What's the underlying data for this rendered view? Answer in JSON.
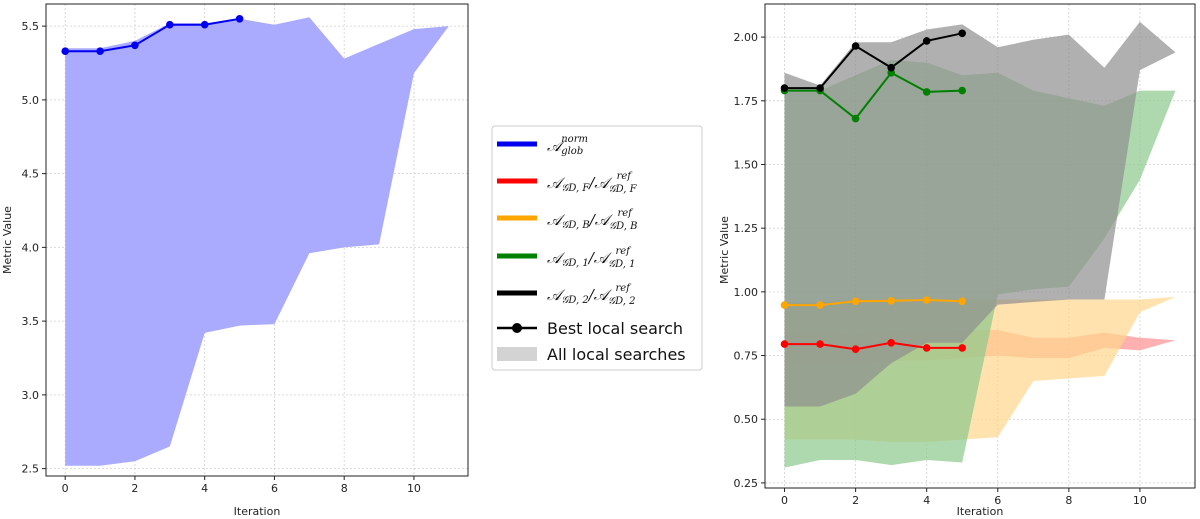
{
  "chart_data": [
    {
      "type": "area",
      "xlabel": "Iteration",
      "ylabel": "Metric Value",
      "xlim": [
        -0.55,
        11.55
      ],
      "ylim": [
        2.45,
        5.65
      ],
      "xticks": [
        0,
        2,
        4,
        6,
        8,
        10
      ],
      "yticks": [
        2.5,
        3.0,
        3.5,
        4.0,
        4.5,
        5.0,
        5.5
      ],
      "ytick_labels": [
        "2.5",
        "3.0",
        "3.5",
        "4.0",
        "4.5",
        "5.0",
        "5.5"
      ],
      "grid": true,
      "series": [
        {
          "color": "#0000ee",
          "band_color": "#aaaaff",
          "band_x": [
            0,
            1,
            2,
            3,
            4,
            5,
            6,
            7,
            8,
            9,
            10,
            11
          ],
          "band_upper": [
            5.35,
            5.35,
            5.4,
            5.52,
            5.52,
            5.55,
            5.51,
            5.56,
            5.28,
            5.38,
            5.48,
            5.5
          ],
          "band_lower": [
            2.52,
            2.52,
            2.55,
            2.65,
            3.42,
            3.47,
            3.48,
            3.96,
            4.0,
            4.02,
            5.18,
            5.5
          ],
          "best_x": [
            0,
            1,
            2,
            3,
            4,
            5
          ],
          "best_y": [
            5.33,
            5.33,
            5.37,
            5.51,
            5.51,
            5.55
          ]
        }
      ]
    },
    {
      "type": "area",
      "xlabel": "Iteration",
      "ylabel": "Metric Value",
      "xlim": [
        -0.55,
        11.55
      ],
      "ylim": [
        0.23,
        2.13
      ],
      "xticks": [
        0,
        2,
        4,
        6,
        8,
        10
      ],
      "yticks": [
        0.25,
        0.5,
        0.75,
        1.0,
        1.25,
        1.5,
        1.75,
        2.0
      ],
      "ytick_labels": [
        "0.25",
        "0.50",
        "0.75",
        "1.00",
        "1.25",
        "1.50",
        "1.75",
        "2.00"
      ],
      "grid": true,
      "series": [
        {
          "color": "#ff0000",
          "band_color": "#ff9090",
          "band_x": [
            0,
            1,
            2,
            3,
            4,
            5,
            6,
            7,
            8,
            9,
            10,
            11
          ],
          "band_upper": [
            0.84,
            0.84,
            0.83,
            0.85,
            0.84,
            0.85,
            0.85,
            0.82,
            0.82,
            0.84,
            0.82,
            0.81
          ],
          "band_lower": [
            0.72,
            0.72,
            0.72,
            0.73,
            0.73,
            0.74,
            0.75,
            0.74,
            0.74,
            0.78,
            0.77,
            0.81
          ],
          "best_x": [
            0,
            1,
            2,
            3,
            4,
            5
          ],
          "best_y": [
            0.795,
            0.795,
            0.775,
            0.8,
            0.78,
            0.78
          ]
        },
        {
          "color": "#ffa500",
          "band_color": "#ffd68a",
          "band_x": [
            0,
            1,
            2,
            3,
            4,
            5,
            6,
            7,
            8,
            9,
            10,
            11
          ],
          "band_upper": [
            0.96,
            0.96,
            0.97,
            0.97,
            0.97,
            0.97,
            0.97,
            0.97,
            0.97,
            0.97,
            0.97,
            0.98
          ],
          "band_lower": [
            0.42,
            0.42,
            0.42,
            0.41,
            0.41,
            0.42,
            0.43,
            0.65,
            0.66,
            0.67,
            0.92,
            0.98
          ],
          "best_x": [
            0,
            1,
            2,
            3,
            4,
            5
          ],
          "best_y": [
            0.948,
            0.948,
            0.963,
            0.965,
            0.968,
            0.963
          ]
        },
        {
          "color": "#008000",
          "band_color": "#8cc98c",
          "band_x": [
            0,
            1,
            2,
            3,
            4,
            5,
            6,
            7,
            8,
            9,
            10,
            11
          ],
          "band_upper": [
            1.79,
            1.79,
            1.85,
            1.91,
            1.9,
            1.85,
            1.86,
            1.79,
            1.76,
            1.73,
            1.79,
            1.79
          ],
          "band_lower": [
            0.31,
            0.34,
            0.34,
            0.32,
            0.34,
            0.33,
            0.99,
            1.01,
            1.02,
            1.21,
            1.44,
            1.79
          ],
          "best_x": [
            0,
            1,
            2,
            3,
            4,
            5
          ],
          "best_y": [
            1.79,
            1.79,
            1.68,
            1.86,
            1.785,
            1.79
          ]
        },
        {
          "color": "#000000",
          "band_color": "#8f8f8f",
          "band_x": [
            0,
            1,
            2,
            3,
            4,
            5,
            6,
            7,
            8,
            9,
            10,
            11
          ],
          "band_upper": [
            1.86,
            1.81,
            1.98,
            1.98,
            2.03,
            2.05,
            1.96,
            1.99,
            2.01,
            1.88,
            2.06,
            1.94
          ],
          "band_lower": [
            0.55,
            0.55,
            0.6,
            0.72,
            0.8,
            0.8,
            0.95,
            0.96,
            0.97,
            0.97,
            1.87,
            1.94
          ],
          "best_x": [
            0,
            1,
            2,
            3,
            4,
            5
          ],
          "best_y": [
            1.8,
            1.8,
            1.965,
            1.88,
            1.985,
            2.015
          ]
        }
      ],
      "legend": {
        "placement": "between-axes-center-right",
        "best_label": "Best local search",
        "all_label": "All local searches"
      }
    }
  ]
}
